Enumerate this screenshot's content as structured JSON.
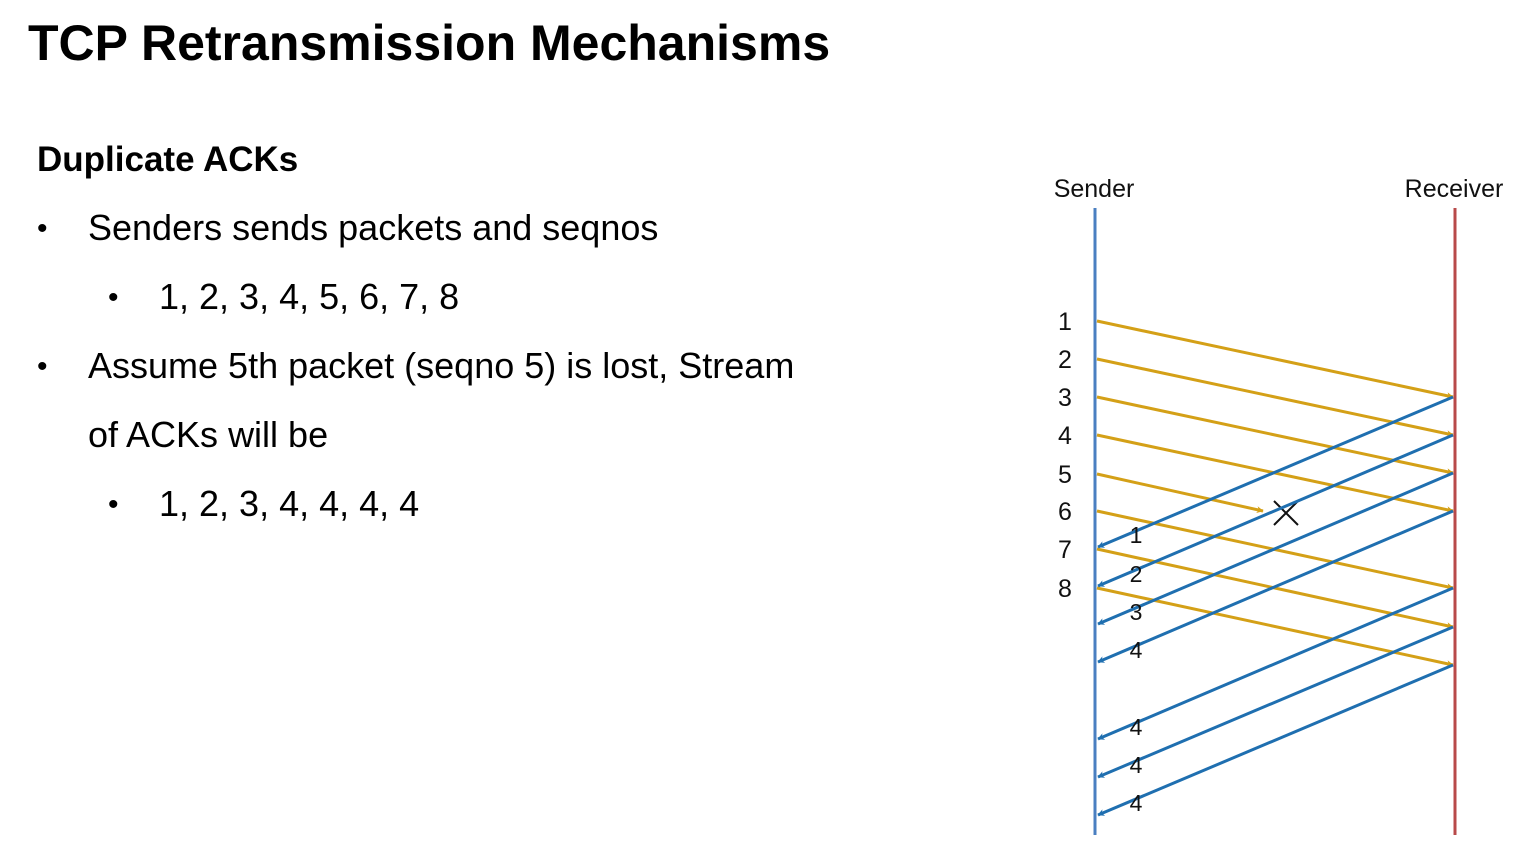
{
  "slide": {
    "title": "TCP Retransmission Mechanisms",
    "heading": "Duplicate ACKs",
    "bullets": [
      {
        "marker": "•",
        "text": "Senders sends packets and seqnos"
      },
      {
        "marker": "•",
        "text": "1, 2, 3, 4, 5, 6, 7, 8"
      },
      {
        "marker": "•",
        "text": "Assume 5th packet (seqno 5) is lost, Stream"
      },
      {
        "text": "of ACKs will be"
      },
      {
        "marker": "•",
        "text": "1, 2, 3, 4, 4, 4, 4"
      }
    ]
  },
  "diagram": {
    "sender_label": "Sender",
    "receiver_label": "Receiver",
    "sender_line_color": "#4a7fc1",
    "receiver_line_color": "#b84a4a",
    "packet_color": "#d4a017",
    "ack_color": "#1f6fb0",
    "lost_marker": "×",
    "packets": [
      {
        "seq": "1",
        "lost": false
      },
      {
        "seq": "2",
        "lost": false
      },
      {
        "seq": "3",
        "lost": false
      },
      {
        "seq": "4",
        "lost": false
      },
      {
        "seq": "5",
        "lost": true
      },
      {
        "seq": "6",
        "lost": false
      },
      {
        "seq": "7",
        "lost": false
      },
      {
        "seq": "8",
        "lost": false
      }
    ],
    "acks": [
      {
        "ack": "1"
      },
      {
        "ack": "2"
      },
      {
        "ack": "3"
      },
      {
        "ack": "4"
      },
      {
        "ack": "4"
      },
      {
        "ack": "4"
      },
      {
        "ack": "4"
      }
    ]
  }
}
